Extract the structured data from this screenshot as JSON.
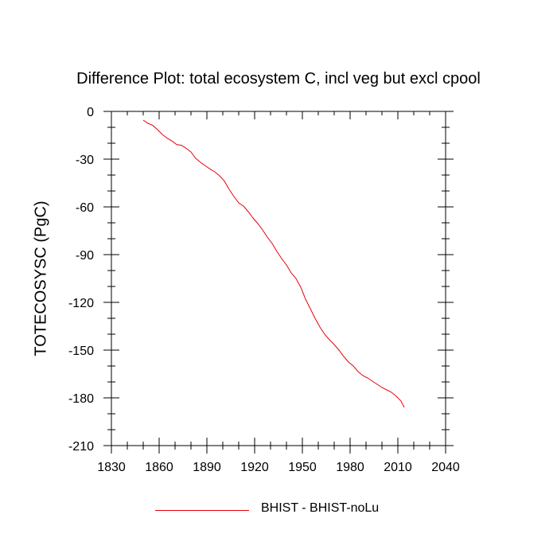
{
  "chart_data": {
    "type": "line",
    "title": "Difference Plot: total ecosystem C, incl veg but excl cpool",
    "xlabel": "",
    "ylabel": "TOTECOSYSC  (PgC)",
    "xlim": [
      1830,
      2040
    ],
    "ylim": [
      -210,
      0
    ],
    "x_ticks": [
      1830,
      1860,
      1890,
      1920,
      1950,
      1980,
      2010,
      2040
    ],
    "y_ticks": [
      0,
      -30,
      -60,
      -90,
      -120,
      -150,
      -180,
      -210
    ],
    "series": [
      {
        "name": "BHIST - BHIST-noLu",
        "color": "#e8000b",
        "x": [
          1850,
          1853,
          1856,
          1859,
          1862,
          1865,
          1868,
          1871,
          1874,
          1877,
          1880,
          1883,
          1886,
          1889,
          1892,
          1895,
          1898,
          1901,
          1904,
          1907,
          1910,
          1913,
          1916,
          1919,
          1922,
          1925,
          1928,
          1931,
          1934,
          1937,
          1940,
          1943,
          1946,
          1949,
          1952,
          1955,
          1958,
          1961,
          1964,
          1967,
          1970,
          1973,
          1976,
          1979,
          1982,
          1985,
          1988,
          1991,
          1994,
          1997,
          2000,
          2003,
          2006,
          2009,
          2012,
          2014
        ],
        "values": [
          -5.5,
          -7.5,
          -8.8,
          -11.5,
          -14.5,
          -16.8,
          -18.6,
          -20.8,
          -21.3,
          -23.2,
          -25.5,
          -29.5,
          -32.0,
          -34.2,
          -36.2,
          -38.0,
          -40.5,
          -43.8,
          -49.0,
          -53.5,
          -57.5,
          -59.5,
          -63.0,
          -67.0,
          -70.5,
          -74.5,
          -79.0,
          -83.0,
          -88.0,
          -92.5,
          -96.5,
          -101.5,
          -105.0,
          -110.5,
          -118.0,
          -124.0,
          -130.0,
          -135.5,
          -140.0,
          -143.5,
          -146.5,
          -150.0,
          -154.0,
          -157.5,
          -160.0,
          -163.5,
          -166.0,
          -167.5,
          -169.5,
          -171.5,
          -173.5,
          -175.0,
          -176.5,
          -179.0,
          -182.0,
          -186.0
        ]
      }
    ]
  }
}
